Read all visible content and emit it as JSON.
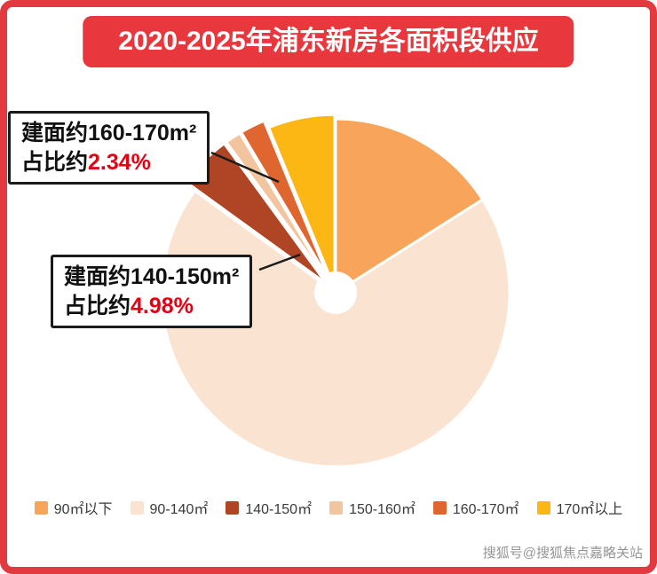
{
  "title": "2020-2025年浦东新房各面积段供应",
  "watermark": "搜狐号@搜狐焦点嘉略关站",
  "colors": {
    "border": "#E23A3E",
    "banner": "#E8383D",
    "highlight": "#E60013",
    "callout_border": "#1A1A1A"
  },
  "callouts": [
    {
      "area": "建面约160-170m²",
      "share_prefix": "占比约",
      "share_value": "2.34%"
    },
    {
      "area": "建面约140-150m²",
      "share_prefix": "占比约",
      "share_value": "4.98%"
    }
  ],
  "chart_data": {
    "type": "pie",
    "title": "2020-2025年浦东新房各面积段供应",
    "legend_position": "bottom",
    "donut_hole": true,
    "slices": [
      {
        "label": "90㎡以下",
        "value": 16.0,
        "color": "#F8A55B",
        "explode": 0
      },
      {
        "label": "90-140㎡",
        "value": 68.98,
        "color": "#FAE3D1",
        "explode": 0
      },
      {
        "label": "140-150㎡",
        "value": 4.98,
        "color": "#AF4524",
        "explode": 14
      },
      {
        "label": "150-160㎡",
        "value": 1.5,
        "color": "#F3C59E",
        "explode": 14
      },
      {
        "label": "160-170㎡",
        "value": 2.34,
        "color": "#E0662F",
        "explode": 14
      },
      {
        "label": "170㎡以上",
        "value": 6.2,
        "color": "#FCB714",
        "explode": 5
      }
    ]
  }
}
